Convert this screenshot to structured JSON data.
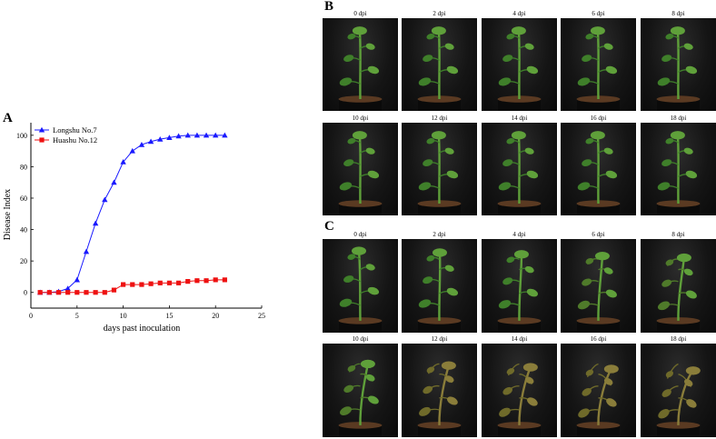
{
  "panel_labels": {
    "a": "A",
    "b": "B",
    "c": "C"
  },
  "chart_data": {
    "type": "line",
    "xlabel": "days past inoculation",
    "ylabel": "Disease Index",
    "xlim": [
      0,
      25
    ],
    "ylim": [
      -10,
      108
    ],
    "xticks": [
      0,
      5,
      10,
      15,
      20,
      25
    ],
    "yticks": [
      0,
      20,
      40,
      60,
      80,
      100
    ],
    "grid": false,
    "legend_position": "top-left",
    "series": [
      {
        "name": "Longshu No.7",
        "color": "#1a1aff",
        "marker": "triangle",
        "x": [
          1,
          2,
          3,
          4,
          5,
          6,
          7,
          8,
          9,
          10,
          11,
          12,
          13,
          14,
          15,
          16,
          17,
          18,
          19,
          20,
          21
        ],
        "y": [
          0,
          0,
          0.5,
          2.5,
          8,
          26,
          44,
          59,
          70,
          83,
          90,
          94,
          96,
          97.5,
          98.5,
          99.5,
          100,
          100,
          100,
          100,
          100
        ]
      },
      {
        "name": "Huashu No.12",
        "color": "#ee1111",
        "marker": "square",
        "x": [
          1,
          2,
          3,
          4,
          5,
          6,
          7,
          8,
          9,
          10,
          11,
          12,
          13,
          14,
          15,
          16,
          17,
          18,
          19,
          20,
          21
        ],
        "y": [
          0,
          0,
          0,
          0,
          0,
          0,
          0,
          0,
          1.5,
          5,
          5,
          5,
          5.5,
          6,
          6,
          6,
          7,
          7.5,
          7.5,
          8,
          8
        ]
      }
    ]
  },
  "panel_b": {
    "captions": [
      "0 dpi",
      "2 dpi",
      "4 dpi",
      "6 dpi",
      "8 dpi",
      "10 dpi",
      "12 dpi",
      "14 dpi",
      "16 dpi",
      "18 dpi"
    ]
  },
  "panel_c": {
    "captions": [
      "0 dpi",
      "2 dpi",
      "4 dpi",
      "6 dpi",
      "8 dpi",
      "10 dpi",
      "12 dpi",
      "14 dpi",
      "16 dpi",
      "18 dpi"
    ]
  }
}
